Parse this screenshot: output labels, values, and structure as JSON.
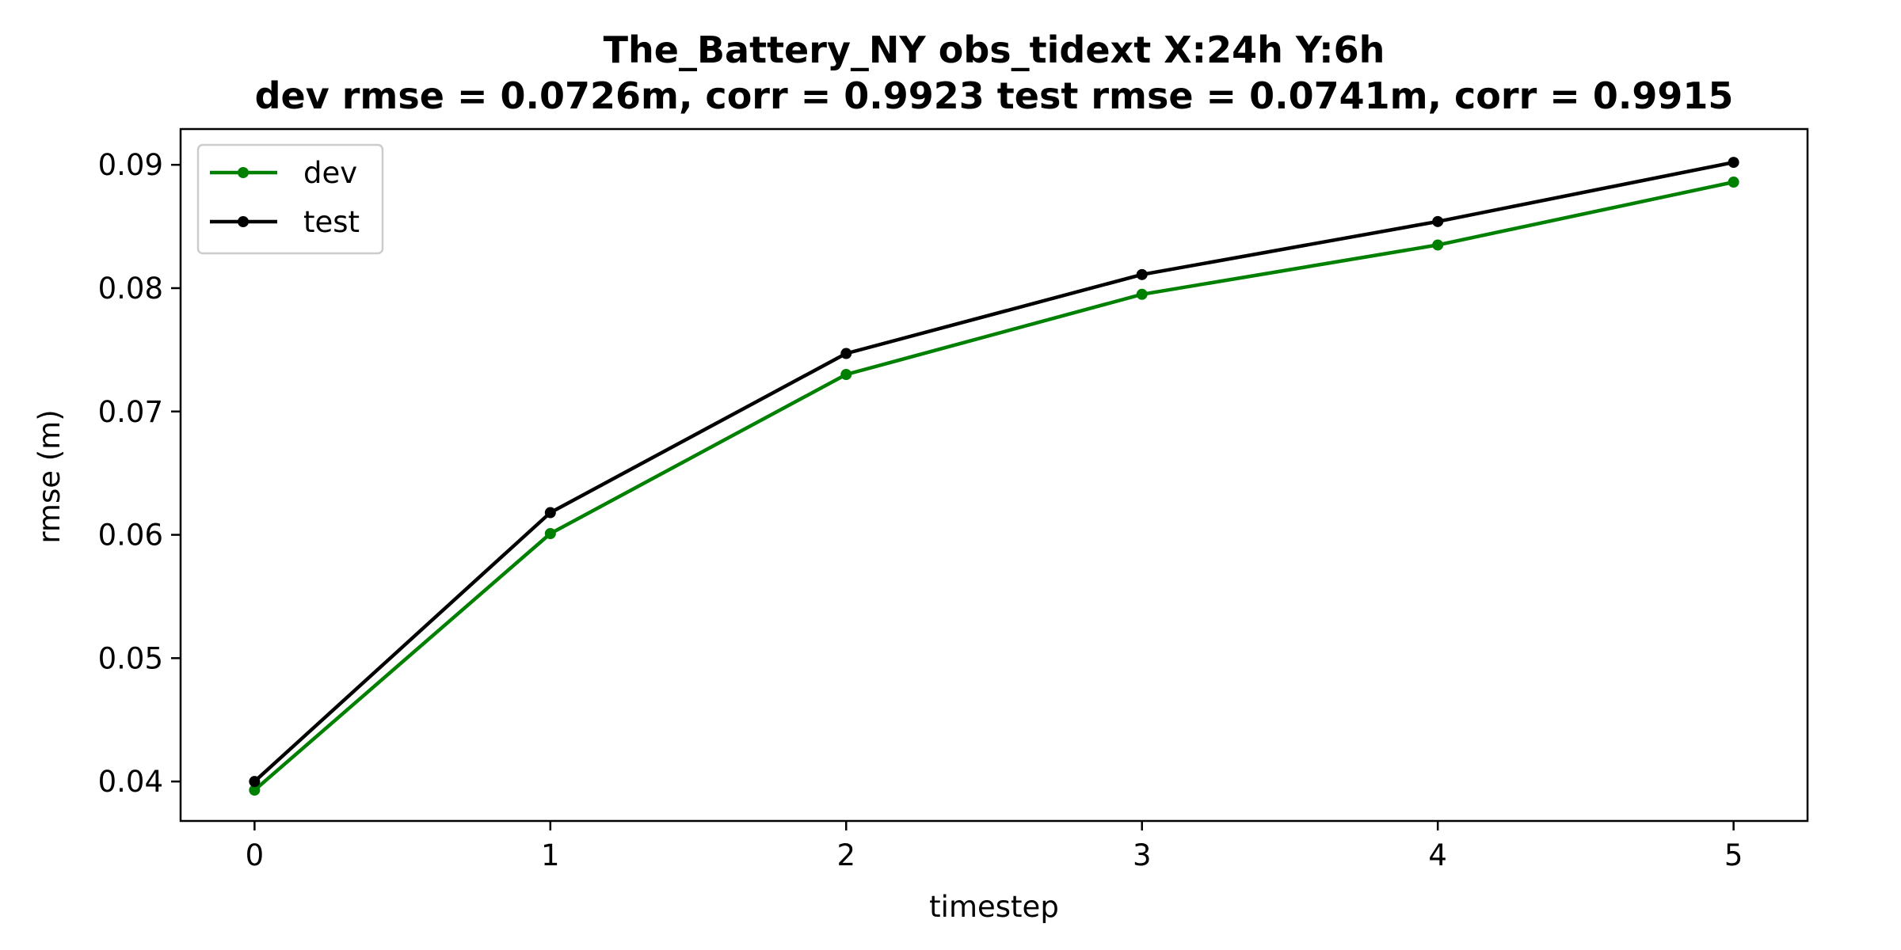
{
  "chart_data": {
    "type": "line",
    "title": "The_Battery_NY   obs_tidext   X:24h   Y:6h",
    "subtitle": "dev rmse = 0.0726m, corr = 0.9923   test rmse = 0.0741m, corr = 0.9915",
    "xlabel": "timestep",
    "ylabel": "rmse (m)",
    "x": [
      0,
      1,
      2,
      3,
      4,
      5
    ],
    "xlim": [
      -0.25,
      5.25
    ],
    "ylim": [
      0.0368,
      0.0929
    ],
    "xticks": [
      0,
      1,
      2,
      3,
      4,
      5
    ],
    "xtick_labels": [
      "0",
      "1",
      "2",
      "3",
      "4",
      "5"
    ],
    "yticks": [
      0.04,
      0.05,
      0.06,
      0.07,
      0.08,
      0.09
    ],
    "ytick_labels": [
      "0.04",
      "0.05",
      "0.06",
      "0.07",
      "0.08",
      "0.09"
    ],
    "grid": false,
    "legend_position": "upper-left",
    "series": [
      {
        "name": "dev",
        "color": "#008000",
        "values": [
          0.0393,
          0.0601,
          0.073,
          0.0795,
          0.0835,
          0.0886
        ]
      },
      {
        "name": "test",
        "color": "#000000",
        "values": [
          0.04,
          0.0618,
          0.0747,
          0.0811,
          0.0854,
          0.0902
        ]
      }
    ]
  }
}
